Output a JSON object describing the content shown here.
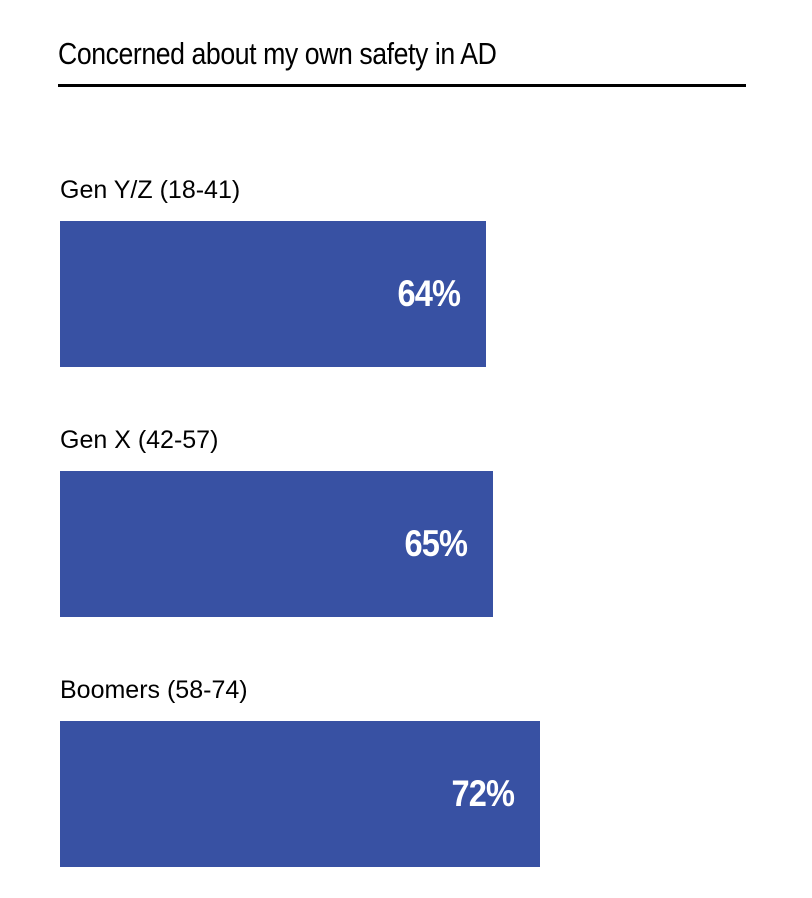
{
  "chart_data": {
    "type": "bar",
    "orientation": "horizontal",
    "title": "Concerned about my own safety in AD",
    "categories": [
      "Gen Y/Z (18-41)",
      "Gen X (42-57)",
      "Boomers (58-74)"
    ],
    "values": [
      64,
      65,
      72
    ],
    "value_labels": [
      "64%",
      "65%",
      "72%"
    ],
    "unit": "%",
    "xlim": [
      0,
      100
    ],
    "grid": false,
    "legend": "none",
    "bar_color": "#3851a3",
    "value_label_color": "#ffffff"
  }
}
